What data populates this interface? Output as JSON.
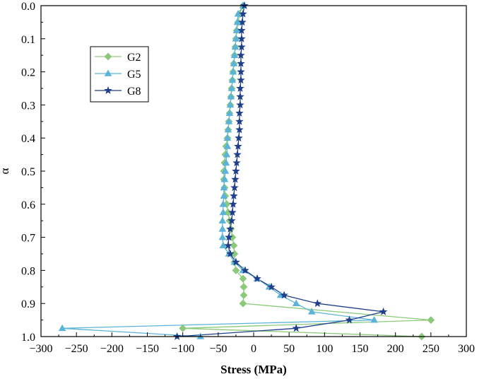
{
  "chart_data": {
    "type": "line",
    "title": "",
    "xlabel": "Stress (MPa)",
    "ylabel": "α",
    "xlim": [
      -300,
      300
    ],
    "ylim": [
      1.0,
      0.0
    ],
    "y_inverted": true,
    "xticks": [
      "−300",
      "−250",
      "−200",
      "−150",
      "−100",
      "−50",
      "0",
      "50",
      "100",
      "150",
      "200",
      "250",
      "300"
    ],
    "xtick_values": [
      -300,
      -250,
      -200,
      -150,
      -100,
      -50,
      0,
      50,
      100,
      150,
      200,
      250,
      300
    ],
    "yticks": [
      "0.0",
      "0.1",
      "0.2",
      "0.3",
      "0.4",
      "0.5",
      "0.6",
      "0.7",
      "0.8",
      "0.9",
      "1.0"
    ],
    "ytick_values": [
      0.0,
      0.1,
      0.2,
      0.3,
      0.4,
      0.5,
      0.6,
      0.7,
      0.8,
      0.9,
      1.0
    ],
    "grid": false,
    "legend_position": "top-left",
    "series": [
      {
        "name": "G2",
        "color": "#8cc97a",
        "marker": "diamond",
        "points": [
          [
            -15,
            0.0
          ],
          [
            -20,
            0.025
          ],
          [
            -22,
            0.05
          ],
          [
            -24,
            0.075
          ],
          [
            -25,
            0.1
          ],
          [
            -26,
            0.125
          ],
          [
            -27,
            0.15
          ],
          [
            -28,
            0.175
          ],
          [
            -29,
            0.2
          ],
          [
            -30,
            0.225
          ],
          [
            -31,
            0.25
          ],
          [
            -32,
            0.275
          ],
          [
            -33,
            0.3
          ],
          [
            -34,
            0.325
          ],
          [
            -35,
            0.35
          ],
          [
            -36,
            0.375
          ],
          [
            -37,
            0.4
          ],
          [
            -39,
            0.425
          ],
          [
            -40,
            0.45
          ],
          [
            -41,
            0.475
          ],
          [
            -42,
            0.5
          ],
          [
            -42,
            0.525
          ],
          [
            -41,
            0.55
          ],
          [
            -40,
            0.575
          ],
          [
            -38,
            0.6
          ],
          [
            -36,
            0.625
          ],
          [
            -34,
            0.65
          ],
          [
            -32,
            0.675
          ],
          [
            -30,
            0.7
          ],
          [
            -28,
            0.725
          ],
          [
            -27,
            0.75
          ],
          [
            -27,
            0.775
          ],
          [
            -25,
            0.8
          ],
          [
            -15,
            0.825
          ],
          [
            -14,
            0.85
          ],
          [
            -14,
            0.875
          ],
          [
            -15,
            0.9
          ],
          [
            250,
            0.95
          ],
          [
            -100,
            0.975
          ],
          [
            237,
            1.0
          ]
        ]
      },
      {
        "name": "G5",
        "color": "#5cb3d9",
        "marker": "triangle",
        "points": [
          [
            -15,
            0.0
          ],
          [
            -22,
            0.025
          ],
          [
            -23,
            0.05
          ],
          [
            -24,
            0.075
          ],
          [
            -25,
            0.1
          ],
          [
            -26,
            0.125
          ],
          [
            -27,
            0.15
          ],
          [
            -28,
            0.175
          ],
          [
            -29,
            0.2
          ],
          [
            -30,
            0.225
          ],
          [
            -31,
            0.25
          ],
          [
            -32,
            0.275
          ],
          [
            -33,
            0.3
          ],
          [
            -34,
            0.325
          ],
          [
            -35,
            0.35
          ],
          [
            -36,
            0.375
          ],
          [
            -37,
            0.4
          ],
          [
            -37,
            0.425
          ],
          [
            -38,
            0.45
          ],
          [
            -39,
            0.475
          ],
          [
            -40,
            0.5
          ],
          [
            -41,
            0.525
          ],
          [
            -42,
            0.55
          ],
          [
            -42,
            0.575
          ],
          [
            -43,
            0.6
          ],
          [
            -43,
            0.625
          ],
          [
            -44,
            0.65
          ],
          [
            -44,
            0.675
          ],
          [
            -44,
            0.7
          ],
          [
            -43,
            0.725
          ],
          [
            -35,
            0.75
          ],
          [
            -27,
            0.775
          ],
          [
            -15,
            0.8
          ],
          [
            5,
            0.825
          ],
          [
            22,
            0.85
          ],
          [
            38,
            0.875
          ],
          [
            60,
            0.9
          ],
          [
            82,
            0.925
          ],
          [
            170,
            0.95
          ],
          [
            -270,
            0.975
          ],
          [
            -75,
            1.0
          ]
        ]
      },
      {
        "name": "G8",
        "color": "#1f3f8a",
        "marker": "star",
        "points": [
          [
            -13,
            0.0
          ],
          [
            -15,
            0.025
          ],
          [
            -16,
            0.05
          ],
          [
            -17,
            0.075
          ],
          [
            -17,
            0.1
          ],
          [
            -17,
            0.125
          ],
          [
            -18,
            0.15
          ],
          [
            -18,
            0.175
          ],
          [
            -18,
            0.2
          ],
          [
            -18,
            0.225
          ],
          [
            -19,
            0.25
          ],
          [
            -19,
            0.275
          ],
          [
            -19,
            0.3
          ],
          [
            -20,
            0.325
          ],
          [
            -20,
            0.35
          ],
          [
            -20,
            0.375
          ],
          [
            -21,
            0.4
          ],
          [
            -22,
            0.425
          ],
          [
            -23,
            0.45
          ],
          [
            -24,
            0.475
          ],
          [
            -25,
            0.5
          ],
          [
            -26,
            0.525
          ],
          [
            -27,
            0.55
          ],
          [
            -28,
            0.575
          ],
          [
            -29,
            0.6
          ],
          [
            -30,
            0.625
          ],
          [
            -31,
            0.65
          ],
          [
            -33,
            0.675
          ],
          [
            -35,
            0.7
          ],
          [
            -36,
            0.725
          ],
          [
            -33,
            0.75
          ],
          [
            -25,
            0.775
          ],
          [
            -12,
            0.8
          ],
          [
            5,
            0.825
          ],
          [
            25,
            0.85
          ],
          [
            43,
            0.875
          ],
          [
            90,
            0.9
          ],
          [
            183,
            0.925
          ],
          [
            135,
            0.95
          ],
          [
            60,
            0.975
          ],
          [
            -108,
            1.0
          ]
        ]
      }
    ]
  }
}
